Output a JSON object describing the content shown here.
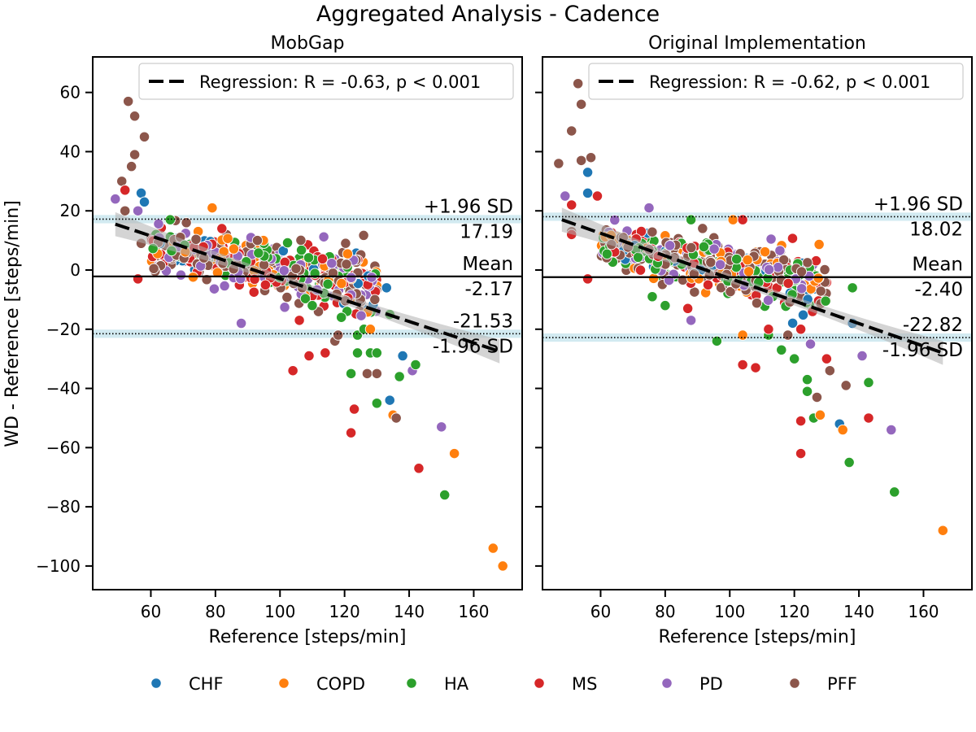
{
  "figure_title": "Aggregated Analysis  - Cadence",
  "colors": {
    "CHF": "#1f77b4",
    "COPD": "#ff7f0e",
    "HA": "#2ca02c",
    "MS": "#d62728",
    "PD": "#9467bd",
    "PFF": "#8c564b",
    "ci_band": "#add8e6",
    "regression_band": "#b0b0b0"
  },
  "legend": {
    "items": [
      {
        "label": "CHF",
        "group": "CHF"
      },
      {
        "label": "COPD",
        "group": "COPD"
      },
      {
        "label": "HA",
        "group": "HA"
      },
      {
        "label": "MS",
        "group": "MS"
      },
      {
        "label": "PD",
        "group": "PD"
      },
      {
        "label": "PFF",
        "group": "PFF"
      }
    ]
  },
  "chart_data": [
    {
      "type": "scatter",
      "title": "MobGap",
      "xlabel": "Reference [steps/min]",
      "ylabel": "WD - Reference [steps/min]",
      "xlim": [
        42,
        175
      ],
      "ylim": [
        -108,
        72
      ],
      "xticks": [
        60,
        80,
        100,
        120,
        140,
        160
      ],
      "yticks": [
        60,
        40,
        20,
        0,
        -20,
        -40,
        -60,
        -80,
        -100
      ],
      "xtick_labels": [
        "60",
        "80",
        "100",
        "120",
        "140",
        "160"
      ],
      "ytick_labels": [
        "60",
        "40",
        "20",
        "0",
        "−20",
        "−40",
        "−60",
        "−80",
        "−100"
      ],
      "regression_label": "Regression: R = -0.63, p < 0.001",
      "regression": {
        "x": [
          49,
          168
        ],
        "y": [
          15.5,
          -27.5
        ],
        "band": 3
      },
      "mean": {
        "label": "Mean",
        "value_label": "-2.17",
        "value": -2.17
      },
      "upper_loa": {
        "label": "+1.96 SD",
        "value_label": "17.19",
        "value": 17.19
      },
      "lower_loa": {
        "label": "-1.96 SD",
        "value_label": "-21.53",
        "value": -21.53
      },
      "cloud": {
        "x_min": 60,
        "x_max": 130,
        "y_center": 1,
        "slope": -0.18,
        "spread": 5,
        "count": 480
      },
      "points": [
        {
          "group": "PFF",
          "x": 53,
          "y": 57
        },
        {
          "group": "PFF",
          "x": 55,
          "y": 52
        },
        {
          "group": "PFF",
          "x": 58,
          "y": 45
        },
        {
          "group": "PFF",
          "x": 55,
          "y": 39
        },
        {
          "group": "PFF",
          "x": 54,
          "y": 35
        },
        {
          "group": "PFF",
          "x": 51,
          "y": 30
        },
        {
          "group": "MS",
          "x": 52,
          "y": 27
        },
        {
          "group": "CHF",
          "x": 57,
          "y": 26
        },
        {
          "group": "PD",
          "x": 49,
          "y": 24
        },
        {
          "group": "CHF",
          "x": 58,
          "y": 23
        },
        {
          "group": "COPD",
          "x": 79,
          "y": 21
        },
        {
          "group": "PFF",
          "x": 52,
          "y": 20
        },
        {
          "group": "PD",
          "x": 56,
          "y": 20
        },
        {
          "group": "HA",
          "x": 66,
          "y": 17
        },
        {
          "group": "PFF",
          "x": 71,
          "y": 16
        },
        {
          "group": "MS",
          "x": 82,
          "y": 14
        },
        {
          "group": "PFF",
          "x": 57,
          "y": 9
        },
        {
          "group": "PD",
          "x": 91,
          "y": 11
        },
        {
          "group": "PFF",
          "x": 93,
          "y": 10
        },
        {
          "group": "MS",
          "x": 56,
          "y": -3
        },
        {
          "group": "PD",
          "x": 88,
          "y": -18
        },
        {
          "group": "MS",
          "x": 109,
          "y": -29
        },
        {
          "group": "MS",
          "x": 104,
          "y": -34
        },
        {
          "group": "MS",
          "x": 114,
          "y": -28
        },
        {
          "group": "HA",
          "x": 122,
          "y": -35
        },
        {
          "group": "HA",
          "x": 124,
          "y": -28
        },
        {
          "group": "MS",
          "x": 123,
          "y": -47
        },
        {
          "group": "MS",
          "x": 122,
          "y": -55
        },
        {
          "group": "HA",
          "x": 130,
          "y": -45
        },
        {
          "group": "PFF",
          "x": 127,
          "y": -35
        },
        {
          "group": "PFF",
          "x": 130,
          "y": -35
        },
        {
          "group": "HA",
          "x": 128,
          "y": -28
        },
        {
          "group": "HA",
          "x": 130,
          "y": -28
        },
        {
          "group": "HA",
          "x": 124,
          "y": -22
        },
        {
          "group": "CHF",
          "x": 134,
          "y": -44
        },
        {
          "group": "COPD",
          "x": 135,
          "y": -49
        },
        {
          "group": "PFF",
          "x": 136,
          "y": -50
        },
        {
          "group": "HA",
          "x": 137,
          "y": -36
        },
        {
          "group": "CHF",
          "x": 138,
          "y": -29
        },
        {
          "group": "PD",
          "x": 141,
          "y": -34
        },
        {
          "group": "HA",
          "x": 142,
          "y": -32
        },
        {
          "group": "MS",
          "x": 143,
          "y": -67
        },
        {
          "group": "PD",
          "x": 150,
          "y": -53
        },
        {
          "group": "HA",
          "x": 151,
          "y": -76
        },
        {
          "group": "COPD",
          "x": 154,
          "y": -62
        },
        {
          "group": "COPD",
          "x": 166,
          "y": -94
        },
        {
          "group": "COPD",
          "x": 169,
          "y": -100
        },
        {
          "group": "PFF",
          "x": 117,
          "y": -24
        },
        {
          "group": "PFF",
          "x": 118,
          "y": -22
        },
        {
          "group": "HA",
          "x": 126,
          "y": -20
        },
        {
          "group": "CHF",
          "x": 133,
          "y": -6
        },
        {
          "group": "HA",
          "x": 134,
          "y": -15
        },
        {
          "group": "COPD",
          "x": 128,
          "y": -20
        },
        {
          "group": "HA",
          "x": 119,
          "y": -16
        },
        {
          "group": "MS",
          "x": 106,
          "y": -17
        },
        {
          "group": "HA",
          "x": 110,
          "y": -12
        }
      ]
    },
    {
      "type": "scatter",
      "title": "Original Implementation",
      "xlabel": "Reference [steps/min]",
      "ylabel": "",
      "xlim": [
        42,
        175
      ],
      "ylim": [
        -108,
        72
      ],
      "xticks": [
        60,
        80,
        100,
        120,
        140,
        160
      ],
      "yticks": [
        60,
        40,
        20,
        0,
        -20,
        -40,
        -60,
        -80,
        -100
      ],
      "xtick_labels": [
        "60",
        "80",
        "100",
        "120",
        "140",
        "160"
      ],
      "ytick_labels": [
        "",
        "",
        "",
        "",
        "",
        "",
        "",
        "",
        ""
      ],
      "regression_label": "Regression: R = -0.62, p < 0.001",
      "regression": {
        "x": [
          48,
          166
        ],
        "y": [
          17,
          -28
        ],
        "band": 3
      },
      "mean": {
        "label": "Mean",
        "value_label": "-2.40",
        "value": -2.4
      },
      "upper_loa": {
        "label": "+1.96 SD",
        "value_label": "18.02",
        "value": 18.02
      },
      "lower_loa": {
        "label": "-1.96 SD",
        "value_label": "-22.82",
        "value": -22.82
      },
      "cloud": {
        "x_min": 60,
        "x_max": 130,
        "y_center": 2,
        "slope": -0.2,
        "spread": 5,
        "count": 480
      },
      "points": [
        {
          "group": "PFF",
          "x": 53,
          "y": 63
        },
        {
          "group": "PFF",
          "x": 54,
          "y": 56
        },
        {
          "group": "PFF",
          "x": 51,
          "y": 47
        },
        {
          "group": "PFF",
          "x": 57,
          "y": 38
        },
        {
          "group": "PFF",
          "x": 54,
          "y": 37
        },
        {
          "group": "PFF",
          "x": 47,
          "y": 36
        },
        {
          "group": "CHF",
          "x": 56,
          "y": 33
        },
        {
          "group": "CHF",
          "x": 56,
          "y": 26
        },
        {
          "group": "PD",
          "x": 49,
          "y": 25
        },
        {
          "group": "MS",
          "x": 59,
          "y": 25
        },
        {
          "group": "MS",
          "x": 51,
          "y": 22
        },
        {
          "group": "PD",
          "x": 75,
          "y": 21
        },
        {
          "group": "COPD",
          "x": 101,
          "y": 17
        },
        {
          "group": "HA",
          "x": 88,
          "y": 17
        },
        {
          "group": "MS",
          "x": 104,
          "y": 17
        },
        {
          "group": "PFF",
          "x": 51,
          "y": 13
        },
        {
          "group": "MS",
          "x": 51,
          "y": 12
        },
        {
          "group": "MS",
          "x": 56,
          "y": -3
        },
        {
          "group": "HA",
          "x": 76,
          "y": -9
        },
        {
          "group": "HA",
          "x": 80,
          "y": -12
        },
        {
          "group": "MS",
          "x": 87,
          "y": -13
        },
        {
          "group": "PD",
          "x": 88,
          "y": -17
        },
        {
          "group": "HA",
          "x": 96,
          "y": -24
        },
        {
          "group": "COPD",
          "x": 104,
          "y": -22
        },
        {
          "group": "MS",
          "x": 104,
          "y": -32
        },
        {
          "group": "MS",
          "x": 108,
          "y": -33
        },
        {
          "group": "HA",
          "x": 112,
          "y": -22
        },
        {
          "group": "MS",
          "x": 112,
          "y": -20
        },
        {
          "group": "HA",
          "x": 116,
          "y": -27
        },
        {
          "group": "HA",
          "x": 120,
          "y": -30
        },
        {
          "group": "MS",
          "x": 122,
          "y": -20
        },
        {
          "group": "HA",
          "x": 124,
          "y": -41
        },
        {
          "group": "MS",
          "x": 122,
          "y": -51
        },
        {
          "group": "MS",
          "x": 122,
          "y": -62
        },
        {
          "group": "HA",
          "x": 126,
          "y": -50
        },
        {
          "group": "PFF",
          "x": 127,
          "y": -43
        },
        {
          "group": "COPD",
          "x": 128,
          "y": -49
        },
        {
          "group": "MS",
          "x": 130,
          "y": -30
        },
        {
          "group": "PFF",
          "x": 131,
          "y": -34
        },
        {
          "group": "CHF",
          "x": 134,
          "y": -52
        },
        {
          "group": "COPD",
          "x": 135,
          "y": -54
        },
        {
          "group": "PFF",
          "x": 136,
          "y": -39
        },
        {
          "group": "HA",
          "x": 137,
          "y": -65
        },
        {
          "group": "PD",
          "x": 141,
          "y": -29
        },
        {
          "group": "HA",
          "x": 143,
          "y": -38
        },
        {
          "group": "MS",
          "x": 143,
          "y": -50
        },
        {
          "group": "HA",
          "x": 138,
          "y": -6
        },
        {
          "group": "CHF",
          "x": 138,
          "y": -18
        },
        {
          "group": "PD",
          "x": 150,
          "y": -54
        },
        {
          "group": "HA",
          "x": 151,
          "y": -75
        },
        {
          "group": "COPD",
          "x": 166,
          "y": -88
        },
        {
          "group": "HA",
          "x": 124,
          "y": -37
        },
        {
          "group": "PD",
          "x": 125,
          "y": -25
        },
        {
          "group": "PFF",
          "x": 118,
          "y": -22
        }
      ]
    }
  ]
}
